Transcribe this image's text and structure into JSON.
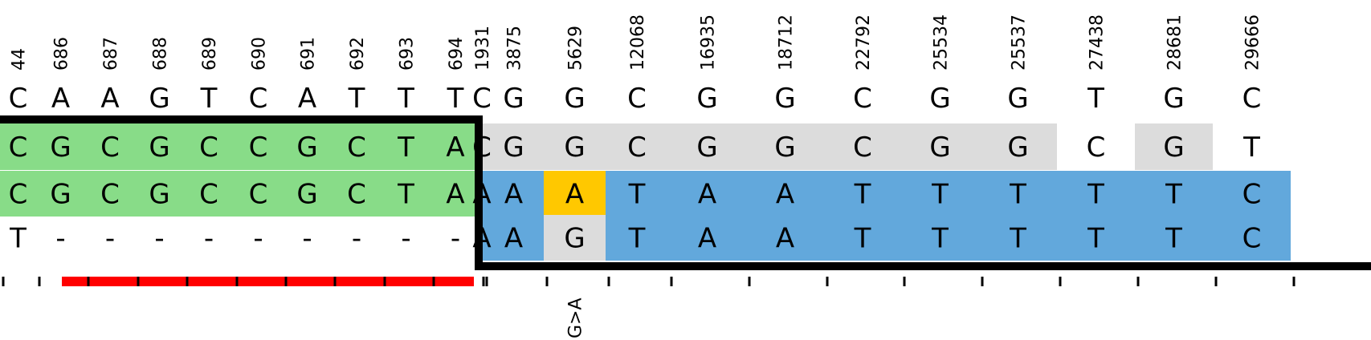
{
  "colors": {
    "match_green": "#88DC88",
    "grey": "#DCDCDC",
    "blue": "#62A8DC",
    "highlight_yellow": "#FFC800",
    "border": "#000000",
    "red_bar": "#FF0000"
  },
  "positions": [
    "44",
    "686",
    "687",
    "688",
    "689",
    "690",
    "691",
    "692",
    "693",
    "694",
    "1931",
    "3875",
    "5629",
    "12068",
    "16935",
    "18712",
    "22792",
    "25534",
    "25537",
    "27438",
    "28681",
    "29666"
  ],
  "reference": [
    "C",
    "A",
    "A",
    "G",
    "T",
    "C",
    "A",
    "T",
    "T",
    "T",
    "C",
    "G",
    "G",
    "C",
    "G",
    "G",
    "C",
    "G",
    "G",
    "T",
    "G",
    "C"
  ],
  "rows": [
    {
      "bases": [
        "C",
        "G",
        "C",
        "G",
        "C",
        "C",
        "G",
        "C",
        "T",
        "A",
        "C",
        "G",
        "G",
        "C",
        "G",
        "G",
        "C",
        "G",
        "G",
        "C",
        "G",
        "T"
      ],
      "fill": [
        "green",
        "green",
        "green",
        "green",
        "green",
        "green",
        "green",
        "green",
        "green",
        "green",
        "grey",
        "grey",
        "grey",
        "grey",
        "grey",
        "grey",
        "grey",
        "grey",
        "grey",
        "none",
        "grey",
        "none"
      ]
    },
    {
      "bases": [
        "C",
        "G",
        "C",
        "G",
        "C",
        "C",
        "G",
        "C",
        "T",
        "A",
        "A",
        "A",
        "A",
        "T",
        "A",
        "A",
        "T",
        "T",
        "T",
        "T",
        "T",
        "C"
      ],
      "fill": [
        "green",
        "green",
        "green",
        "green",
        "green",
        "green",
        "green",
        "green",
        "green",
        "green",
        "blue",
        "blue",
        "yellow",
        "blue",
        "blue",
        "blue",
        "blue",
        "blue",
        "blue",
        "blue",
        "blue",
        "blue"
      ]
    },
    {
      "bases": [
        "T",
        "-",
        "-",
        "-",
        "-",
        "-",
        "-",
        "-",
        "-",
        "-",
        "A",
        "A",
        "G",
        "T",
        "A",
        "A",
        "T",
        "T",
        "T",
        "T",
        "T",
        "C"
      ],
      "fill": [
        "none",
        "none",
        "none",
        "none",
        "none",
        "none",
        "none",
        "none",
        "none",
        "none",
        "blue",
        "blue",
        "grey",
        "blue",
        "blue",
        "blue",
        "blue",
        "blue",
        "blue",
        "blue",
        "blue",
        "blue"
      ]
    }
  ],
  "annotation": {
    "column_index": 12,
    "label": "G>A"
  },
  "deletion_bar": {
    "from_column": 1,
    "to_column": 9
  }
}
